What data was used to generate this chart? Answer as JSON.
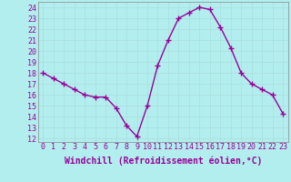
{
  "x": [
    0,
    1,
    2,
    3,
    4,
    5,
    6,
    7,
    8,
    9,
    10,
    11,
    12,
    13,
    14,
    15,
    16,
    17,
    18,
    19,
    20,
    21,
    22,
    23
  ],
  "y": [
    18,
    17.5,
    17,
    16.5,
    16,
    15.8,
    15.8,
    14.8,
    13.2,
    12.2,
    15,
    18.7,
    21,
    23,
    23.5,
    24,
    23.8,
    22.2,
    20.3,
    18,
    17,
    16.5,
    16,
    14.3
  ],
  "line_color": "#990099",
  "marker_color": "#990099",
  "bg_color": "#b2eeee",
  "grid_color": "#aadddd",
  "xlabel": "Windchill (Refroidissement éolien,°C)",
  "ylabel_ticks": [
    12,
    13,
    14,
    15,
    16,
    17,
    18,
    19,
    20,
    21,
    22,
    23,
    24
  ],
  "xtick_labels": [
    "0",
    "1",
    "2",
    "3",
    "4",
    "5",
    "6",
    "7",
    "8",
    "9",
    "10",
    "11",
    "12",
    "13",
    "14",
    "15",
    "16",
    "17",
    "18",
    "19",
    "20",
    "21",
    "22",
    "23"
  ],
  "ylim": [
    11.7,
    24.5
  ],
  "xlim": [
    -0.5,
    23.5
  ],
  "xlabel_color": "#990099",
  "tick_color": "#990099",
  "xlabel_fontsize": 7,
  "tick_fontsize": 6,
  "linewidth": 1.0,
  "markersize": 2.5,
  "spine_color": "#888888"
}
